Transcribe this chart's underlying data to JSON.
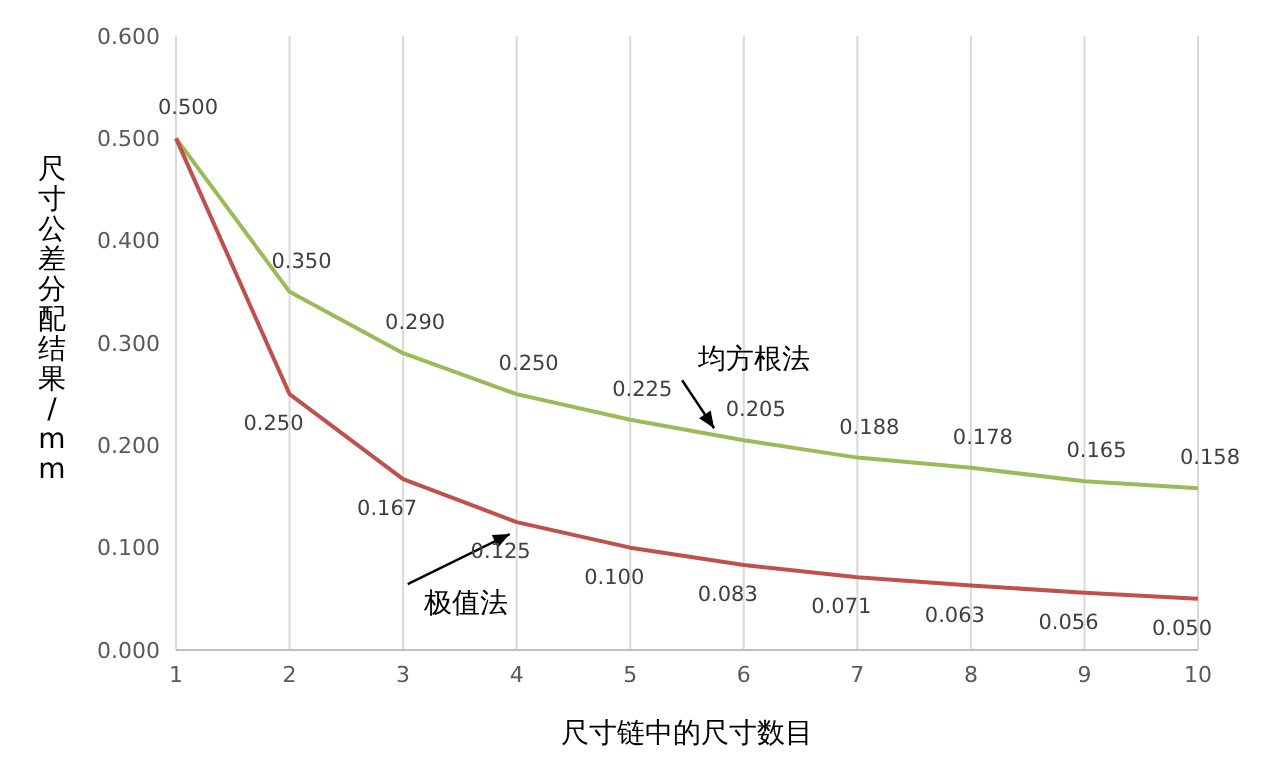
{
  "chart_data": {
    "type": "line",
    "xlabel": "尺寸链中的尺寸数目",
    "ylabel": "尺寸公差分配结果/mm",
    "categories": [
      "1",
      "2",
      "3",
      "4",
      "5",
      "6",
      "7",
      "8",
      "9",
      "10"
    ],
    "series": [
      {
        "name": "均方根法",
        "color": "#9bbb59",
        "values": [
          0.5,
          0.35,
          0.29,
          0.25,
          0.225,
          0.205,
          0.188,
          0.178,
          0.165,
          0.158
        ],
        "value_labels": [
          "0.500",
          "0.350",
          "0.290",
          "0.250",
          "0.225",
          "0.205",
          "0.188",
          "0.178",
          "0.165",
          "0.158"
        ]
      },
      {
        "name": "极值法",
        "color": "#c0504d",
        "values": [
          0.5,
          0.25,
          0.167,
          0.125,
          0.1,
          0.083,
          0.071,
          0.063,
          0.056,
          0.05
        ],
        "value_labels": [
          null,
          "0.250",
          "0.167",
          "0.125",
          "0.100",
          "0.083",
          "0.071",
          "0.063",
          "0.056",
          "0.050"
        ]
      }
    ],
    "ylim": [
      0,
      0.6
    ],
    "yticks": [
      {
        "value": 0,
        "label": "0.000"
      },
      {
        "value": 0.1,
        "label": "0.100"
      },
      {
        "value": 0.2,
        "label": "0.200"
      },
      {
        "value": 0.3,
        "label": "0.300"
      },
      {
        "value": 0.4,
        "label": "0.400"
      },
      {
        "value": 0.5,
        "label": "0.500"
      },
      {
        "value": 0.6,
        "label": "0.600"
      }
    ],
    "grid": "x",
    "legend": false,
    "marker": "none",
    "line_style": "solid"
  }
}
